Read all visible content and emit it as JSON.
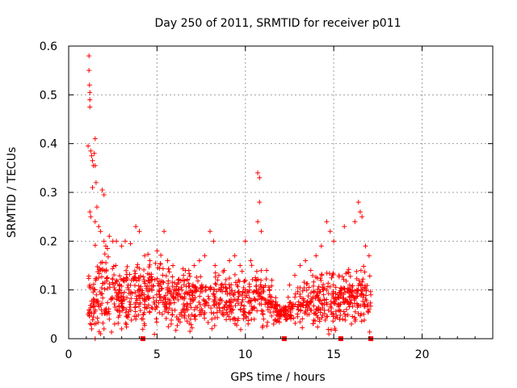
{
  "chart_data": {
    "type": "scatter",
    "title": "Day 250 of 2011, SRMTID for receiver p011",
    "xlabel": "GPS time / hours",
    "ylabel": "SRMTID / TECUs",
    "xlim": [
      0,
      24
    ],
    "ylim": [
      0,
      0.6
    ],
    "x_ticks": [
      0,
      5,
      10,
      15,
      20
    ],
    "x_tick_labels": [
      "0",
      "5",
      "10",
      "15",
      "20"
    ],
    "y_ticks": [
      0,
      0.1,
      0.2,
      0.3,
      0.4,
      0.5,
      0.6
    ],
    "y_tick_labels": [
      "0",
      "0.1",
      "0.2",
      "0.3",
      "0.4",
      "0.5",
      "0.6"
    ],
    "grid": true,
    "marker": "+",
    "series_color": "#ff0000",
    "series": [
      {
        "name": "SRMTID",
        "points": [
          [
            1.15,
            0.58
          ],
          [
            1.15,
            0.55
          ],
          [
            1.18,
            0.52
          ],
          [
            1.2,
            0.49
          ],
          [
            1.2,
            0.475
          ],
          [
            1.2,
            0.505
          ],
          [
            1.1,
            0.395
          ],
          [
            1.25,
            0.385
          ],
          [
            1.3,
            0.375
          ],
          [
            1.35,
            0.365
          ],
          [
            1.4,
            0.355
          ],
          [
            1.5,
            0.355
          ],
          [
            1.55,
            0.32
          ],
          [
            1.5,
            0.41
          ],
          [
            1.45,
            0.38
          ],
          [
            1.9,
            0.305
          ],
          [
            2.0,
            0.295
          ],
          [
            1.35,
            0.31
          ],
          [
            1.6,
            0.27
          ],
          [
            1.2,
            0.26
          ],
          [
            1.25,
            0.25
          ],
          [
            1.5,
            0.24
          ],
          [
            1.7,
            0.23
          ],
          [
            1.8,
            0.22
          ],
          [
            2.0,
            0.2
          ],
          [
            2.1,
            0.19
          ],
          [
            2.3,
            0.21
          ],
          [
            2.5,
            0.2
          ],
          [
            2.7,
            0.2
          ],
          [
            3.0,
            0.19
          ],
          [
            3.2,
            0.2
          ],
          [
            3.5,
            0.195
          ],
          [
            3.8,
            0.23
          ],
          [
            4.0,
            0.22
          ],
          [
            4.3,
            0.17
          ],
          [
            4.6,
            0.16
          ],
          [
            5.0,
            0.18
          ],
          [
            5.4,
            0.22
          ],
          [
            5.6,
            0.16
          ],
          [
            5.9,
            0.15
          ],
          [
            6.2,
            0.12
          ],
          [
            6.5,
            0.13
          ],
          [
            6.8,
            0.14
          ],
          [
            7.1,
            0.15
          ],
          [
            7.4,
            0.16
          ],
          [
            7.7,
            0.17
          ],
          [
            8.0,
            0.22
          ],
          [
            8.2,
            0.2
          ],
          [
            8.5,
            0.13
          ],
          [
            8.8,
            0.14
          ],
          [
            9.1,
            0.16
          ],
          [
            9.4,
            0.17
          ],
          [
            9.7,
            0.15
          ],
          [
            10.0,
            0.2
          ],
          [
            10.3,
            0.16
          ],
          [
            10.7,
            0.34
          ],
          [
            10.8,
            0.33
          ],
          [
            10.8,
            0.28
          ],
          [
            10.7,
            0.24
          ],
          [
            10.9,
            0.22
          ],
          [
            11.2,
            0.14
          ],
          [
            11.5,
            0.12
          ],
          [
            11.8,
            0.07
          ],
          [
            12.0,
            0.05
          ],
          [
            12.2,
            0.06
          ],
          [
            12.5,
            0.11
          ],
          [
            12.8,
            0.13
          ],
          [
            13.1,
            0.15
          ],
          [
            13.4,
            0.16
          ],
          [
            13.7,
            0.14
          ],
          [
            14.0,
            0.17
          ],
          [
            14.3,
            0.19
          ],
          [
            14.6,
            0.24
          ],
          [
            14.8,
            0.22
          ],
          [
            15.0,
            0.2
          ],
          [
            15.3,
            0.13
          ],
          [
            15.6,
            0.23
          ],
          [
            15.9,
            0.11
          ],
          [
            16.2,
            0.24
          ],
          [
            16.4,
            0.28
          ],
          [
            16.5,
            0.26
          ],
          [
            16.6,
            0.25
          ],
          [
            16.8,
            0.19
          ],
          [
            17.0,
            0.17
          ],
          [
            17.1,
            0.09
          ],
          [
            1.1,
            0.05
          ],
          [
            1.3,
            0.02
          ],
          [
            1.5,
            0.0
          ],
          [
            1.8,
            0.01
          ],
          [
            2.0,
            0.02
          ],
          [
            2.3,
            0.04
          ],
          [
            2.6,
            0.03
          ],
          [
            3.0,
            0.02
          ],
          [
            3.4,
            0.05
          ],
          [
            3.8,
            0.04
          ],
          [
            4.3,
            0.07
          ],
          [
            4.9,
            0.06
          ],
          [
            5.3,
            0.05
          ],
          [
            5.8,
            0.03
          ],
          [
            6.3,
            0.05
          ],
          [
            6.9,
            0.04
          ],
          [
            7.5,
            0.05
          ],
          [
            8.1,
            0.04
          ],
          [
            8.7,
            0.05
          ],
          [
            9.3,
            0.04
          ],
          [
            9.9,
            0.05
          ],
          [
            10.5,
            0.04
          ],
          [
            11.0,
            0.05
          ],
          [
            11.6,
            0.03
          ],
          [
            12.4,
            0.05
          ],
          [
            13.0,
            0.06
          ],
          [
            13.6,
            0.05
          ],
          [
            14.2,
            0.04
          ],
          [
            14.9,
            0.05
          ],
          [
            15.5,
            0.04
          ],
          [
            16.0,
            0.03
          ],
          [
            16.7,
            0.05
          ],
          [
            17.0,
            0.06
          ]
        ],
        "band": {
          "x_start": 1.1,
          "x_end": 17.1,
          "y_low": 0.03,
          "y_high": 0.15,
          "points_per_hour": 75,
          "local_peaks": [
            [
              1.5,
              0.16
            ],
            [
              2.2,
              0.15
            ],
            [
              3.0,
              0.13
            ],
            [
              4.0,
              0.13
            ],
            [
              5.3,
              0.15
            ],
            [
              6.5,
              0.11
            ],
            [
              7.5,
              0.11
            ],
            [
              8.0,
              0.12
            ],
            [
              9.0,
              0.1
            ],
            [
              10.0,
              0.11
            ],
            [
              10.8,
              0.13
            ],
            [
              11.5,
              0.09
            ],
            [
              12.1,
              0.05
            ],
            [
              12.6,
              0.08
            ],
            [
              13.5,
              0.11
            ],
            [
              14.5,
              0.12
            ],
            [
              15.3,
              0.1
            ],
            [
              16.2,
              0.12
            ],
            [
              16.9,
              0.11
            ]
          ]
        }
      }
    ],
    "axis_markers": [
      4.2,
      12.2,
      15.4,
      17.1
    ]
  }
}
